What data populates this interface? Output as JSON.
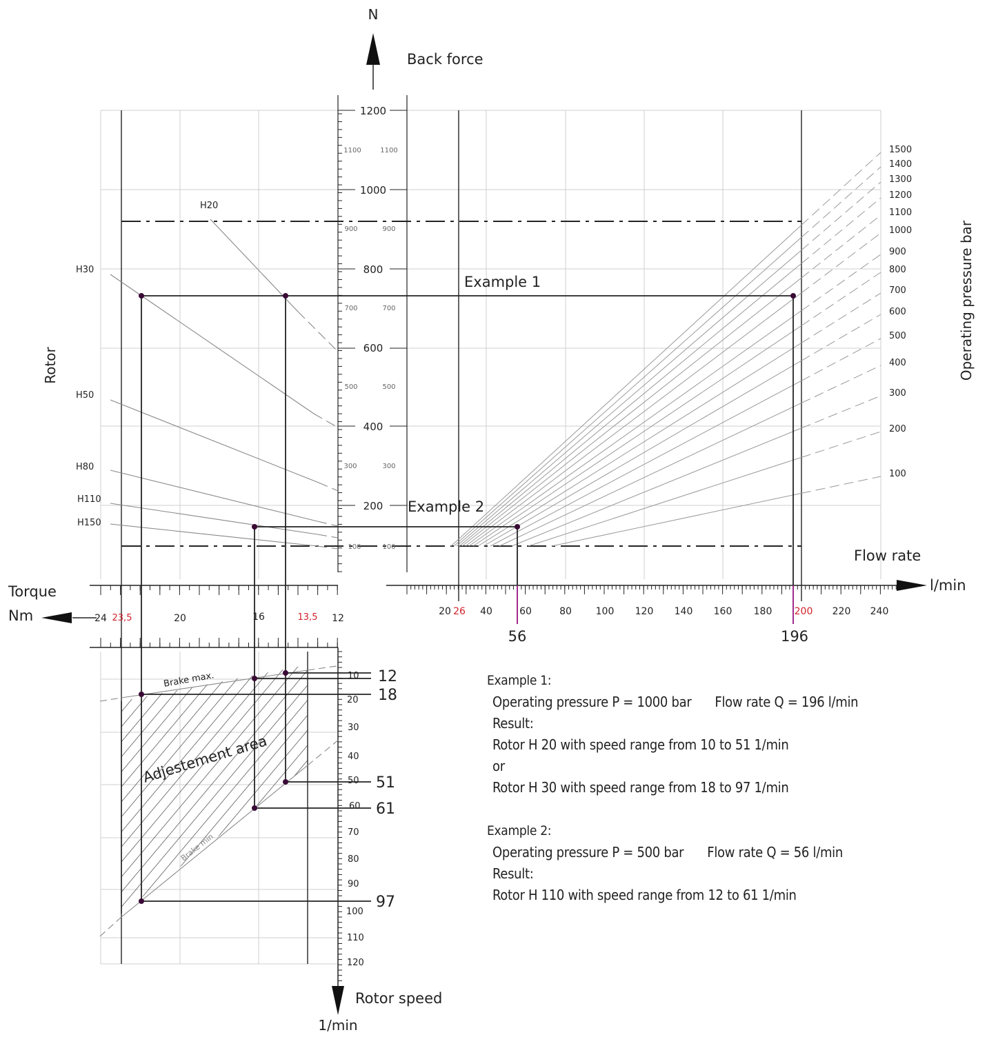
{
  "axes": {
    "back_force": {
      "letter": "N",
      "title": "Back force"
    },
    "flow": {
      "title": "Flow rate",
      "unit": "l/min"
    },
    "torque": {
      "title": "Torque",
      "unit": "Nm"
    },
    "speed": {
      "title": "Rotor speed",
      "unit": "1/min"
    },
    "rotor_label": "Rotor",
    "pressure_label": "Operating pressure bar"
  },
  "force_ticks_main": [
    "1200",
    "1000",
    "800",
    "600",
    "400",
    "200"
  ],
  "force_ticks_minor": [
    "1100",
    "900",
    "700",
    "500",
    "300",
    "100"
  ],
  "flow_ticks": [
    "20",
    "40",
    "60",
    "80",
    "100",
    "120",
    "140",
    "160",
    "180",
    "220",
    "240"
  ],
  "flow_marks_red": [
    "26",
    "200"
  ],
  "flow_results": [
    "56",
    "196"
  ],
  "torque_ticks": [
    "24",
    "20",
    "16",
    "12"
  ],
  "torque_marks_red": [
    "23,5",
    "13,5"
  ],
  "speed_ticks": [
    "10",
    "20",
    "30",
    "40",
    "50",
    "60",
    "70",
    "80",
    "90",
    "100",
    "110",
    "120"
  ],
  "speed_results": [
    "12",
    "18",
    "51",
    "61",
    "97"
  ],
  "rotors": [
    "H20",
    "H30",
    "H50",
    "H80",
    "H110",
    "H150"
  ],
  "pressures": [
    "1500",
    "1400",
    "1300",
    "1200",
    "1100",
    "1000",
    "900",
    "800",
    "700",
    "600",
    "500",
    "400",
    "300",
    "200",
    "100"
  ],
  "labels": {
    "example1": "Example 1",
    "example2": "Example 2",
    "brake_max": "Brake max.",
    "brake_min": "Brake min",
    "area": "Adjestement area"
  },
  "examples": {
    "ex1": {
      "title": "Example 1:",
      "pressure": "Operating pressure P = 1000 bar",
      "flow": "Flow rate  Q = 196 l/min",
      "result": "Result:",
      "line1": "Rotor H 20 with speed range from  10 to 51 1/min",
      "or": "or",
      "line2": "Rotor H 30 with speed range from  18 to 97 1/min"
    },
    "ex2": {
      "title": "Example 2:",
      "pressure": "Operating pressure P = 500 bar",
      "flow": "Flow rate  Q = 56 l/min",
      "result": "Result:",
      "line1": "Rotor H 110 with speed range from  12 to 61 1/min"
    }
  },
  "colors": {
    "ink": "#222222",
    "grid": "#cfcfcf",
    "red": "#d0212a",
    "point": "#3a0a36"
  }
}
